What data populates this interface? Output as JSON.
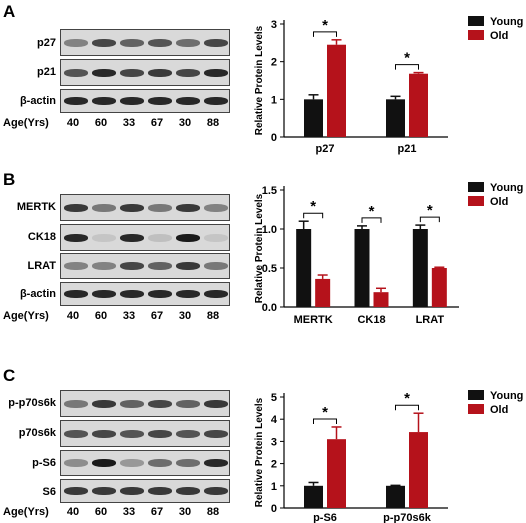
{
  "panels": [
    {
      "letter": "A",
      "blot": {
        "rows": [
          "p27",
          "p21",
          "β-actin"
        ],
        "age_label": "Age(Yrs)",
        "ages": [
          "40",
          "60",
          "33",
          "67",
          "30",
          "88"
        ]
      }
    },
    {
      "letter": "B",
      "blot": {
        "rows": [
          "MERTK",
          "CK18",
          "LRAT",
          "β-actin"
        ],
        "age_label": "Age(Yrs)",
        "ages": [
          "40",
          "60",
          "33",
          "67",
          "30",
          "88"
        ]
      }
    },
    {
      "letter": "C",
      "blot": {
        "rows": [
          "p-p70s6k",
          "p70s6k",
          "p-S6",
          "S6"
        ],
        "age_label": "Age(Yrs)",
        "ages": [
          "40",
          "60",
          "33",
          "67",
          "30",
          "88"
        ]
      }
    }
  ],
  "colors": {
    "young": "#111111",
    "old": "#b5121b"
  },
  "chart_data": [
    {
      "type": "bar",
      "ylabel": "Relative Protein Levels",
      "ylim": [
        0,
        3
      ],
      "yticks": [
        "0",
        "1",
        "2",
        "3"
      ],
      "categories": [
        "p27",
        "p21"
      ],
      "series": [
        {
          "name": "Young",
          "values": [
            1.0,
            1.0
          ],
          "errors": [
            0.12,
            0.08
          ]
        },
        {
          "name": "Old",
          "values": [
            2.45,
            1.68
          ],
          "errors": [
            0.13,
            0.03
          ]
        }
      ],
      "significance": [
        "*",
        "*"
      ],
      "legend": "top-right"
    },
    {
      "type": "bar",
      "ylabel": "Relative Protein Levels",
      "ylim": [
        0,
        1.5
      ],
      "yticks": [
        "0.0",
        "0.5",
        "1.0",
        "1.5"
      ],
      "categories": [
        "MERTK",
        "CK18",
        "LRAT"
      ],
      "series": [
        {
          "name": "Young",
          "values": [
            1.0,
            1.0,
            1.0
          ],
          "errors": [
            0.1,
            0.04,
            0.05
          ]
        },
        {
          "name": "Old",
          "values": [
            0.36,
            0.19,
            0.5
          ],
          "errors": [
            0.05,
            0.05,
            0.01
          ]
        }
      ],
      "significance": [
        "*",
        "*",
        "*"
      ],
      "legend": "top-right"
    },
    {
      "type": "bar",
      "ylabel": "Relative Protein Levels",
      "ylim": [
        0,
        5
      ],
      "yticks": [
        "0",
        "1",
        "2",
        "3",
        "4",
        "5"
      ],
      "categories": [
        "p-S6",
        "p-p70s6k"
      ],
      "series": [
        {
          "name": "Young",
          "values": [
            1.0,
            1.0
          ],
          "errors": [
            0.15,
            0.02
          ]
        },
        {
          "name": "Old",
          "values": [
            3.1,
            3.42
          ],
          "errors": [
            0.55,
            0.85
          ]
        }
      ],
      "significance": [
        "*",
        "*"
      ],
      "legend": "top-right"
    }
  ]
}
